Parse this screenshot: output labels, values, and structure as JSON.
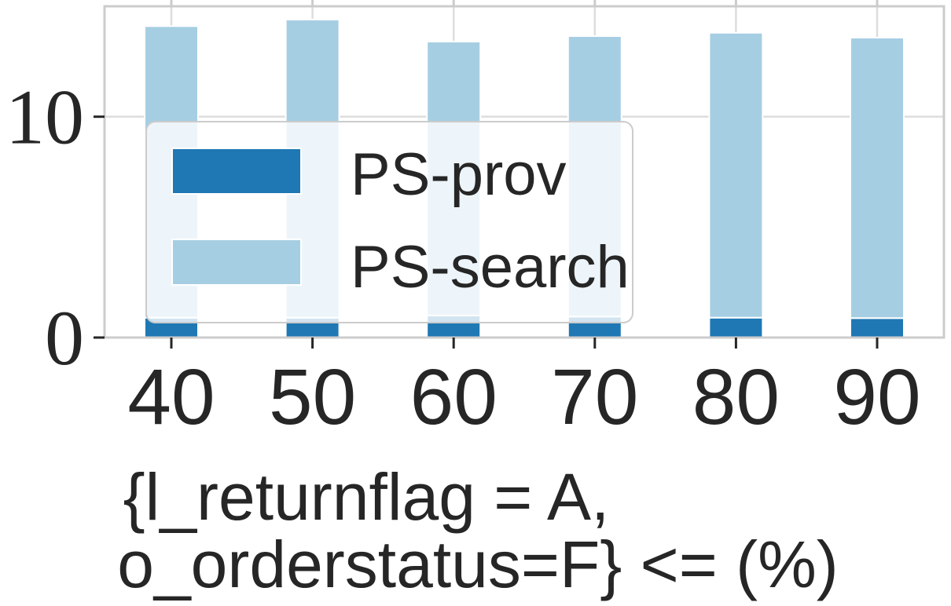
{
  "chart_data": {
    "type": "bar",
    "stacked": true,
    "categories": [
      "40",
      "50",
      "60",
      "70",
      "80",
      "90"
    ],
    "series": [
      {
        "name": "PS-prov",
        "values": [
          0.9,
          0.9,
          1.0,
          0.95,
          0.9,
          0.88
        ],
        "color": "#1f78b4"
      },
      {
        "name": "PS-search",
        "values": [
          13.2,
          13.5,
          12.4,
          12.7,
          12.9,
          12.7
        ],
        "color": "#a6cee3"
      }
    ],
    "y_ticks": [
      "0",
      "10"
    ],
    "ylim": [
      0,
      15
    ],
    "grid": true,
    "legend_position": "center-left",
    "xlabel": [
      "{l_returnflag = A,",
      "o_orderstatus=F} <= (%)"
    ],
    "ylabel": ""
  }
}
